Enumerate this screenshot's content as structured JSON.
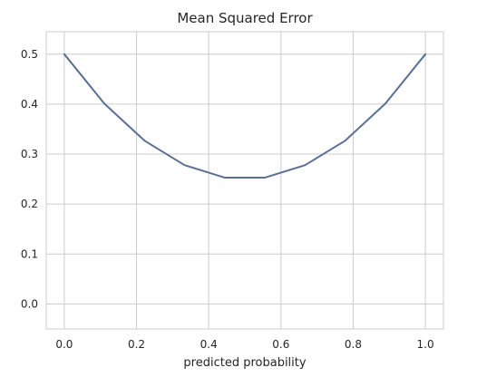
{
  "chart_data": {
    "type": "line",
    "title": "Mean Squared Error",
    "xlabel": "predicted probability",
    "ylabel": "",
    "xlim": [
      -0.05,
      1.05
    ],
    "ylim": [
      -0.05,
      0.545
    ],
    "x_ticks": [
      0.0,
      0.2,
      0.4,
      0.6,
      0.8,
      1.0
    ],
    "x_tick_labels": [
      "0.0",
      "0.2",
      "0.4",
      "0.6",
      "0.8",
      "1.0"
    ],
    "y_ticks": [
      0.0,
      0.1,
      0.2,
      0.3,
      0.4,
      0.5
    ],
    "y_tick_labels": [
      "0.0",
      "0.1",
      "0.2",
      "0.3",
      "0.4",
      "0.5"
    ],
    "grid": true,
    "series": [
      {
        "color": "#5a6f96",
        "x": [
          0.0,
          0.111,
          0.222,
          0.333,
          0.444,
          0.556,
          0.667,
          0.778,
          0.889,
          1.0
        ],
        "y": [
          0.5,
          0.401,
          0.327,
          0.278,
          0.253,
          0.253,
          0.278,
          0.327,
          0.401,
          0.5
        ]
      }
    ]
  }
}
